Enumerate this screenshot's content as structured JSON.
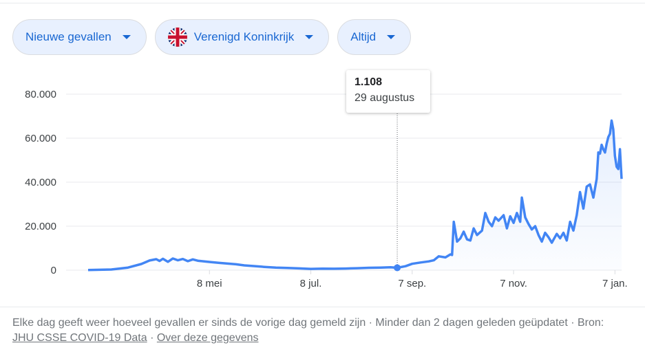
{
  "filters": [
    {
      "label": "Nieuwe gevallen",
      "icon": "chevron-down-icon"
    },
    {
      "label": "Verenigd Koninkrijk",
      "icon": "uk-flag-icon"
    },
    {
      "label": "Altijd",
      "icon": "chevron-down-icon"
    }
  ],
  "tooltip": {
    "value": "1.108",
    "date": "29 augustus"
  },
  "footer": {
    "description": "Elke dag geeft weer hoeveel gevallen er sinds de vorige dag gemeld zijn · Minder dan 2 dagen geleden geüpdatet ·",
    "source_prefix": "Bron:",
    "source_link": "JHU CSSE COVID-19 Data",
    "separator": "·",
    "about_link": "Over deze gegevens"
  },
  "colors": {
    "line": "#4285f4",
    "accent": "#1967d2"
  },
  "chart_data": {
    "type": "area",
    "x_start": "2020-02-25",
    "x_end": "2021-01-11",
    "x_tick_labels": [
      "8 mei",
      "8 jul.",
      "7 sep.",
      "7 nov.",
      "7 jan."
    ],
    "x_tick_dates": [
      "2020-05-08",
      "2020-07-08",
      "2020-09-07",
      "2020-11-07",
      "2021-01-07"
    ],
    "y_tick_labels": [
      "0",
      "20.000",
      "40.000",
      "60.000",
      "80.000"
    ],
    "y_tick_values": [
      0,
      20000,
      40000,
      60000,
      80000
    ],
    "ylim": [
      0,
      80000
    ],
    "grid": true,
    "highlight": {
      "date": "2020-08-29",
      "value": 1108
    },
    "series": [
      {
        "points": [
          [
            "2020-02-25",
            50
          ],
          [
            "2020-03-10",
            300
          ],
          [
            "2020-03-20",
            1200
          ],
          [
            "2020-03-28",
            2800
          ],
          [
            "2020-04-02",
            4400
          ],
          [
            "2020-04-06",
            5000
          ],
          [
            "2020-04-08",
            4200
          ],
          [
            "2020-04-10",
            5200
          ],
          [
            "2020-04-13",
            3800
          ],
          [
            "2020-04-16",
            5300
          ],
          [
            "2020-04-19",
            4500
          ],
          [
            "2020-04-22",
            5100
          ],
          [
            "2020-04-25",
            4100
          ],
          [
            "2020-04-28",
            4900
          ],
          [
            "2020-05-01",
            4300
          ],
          [
            "2020-05-05",
            4000
          ],
          [
            "2020-05-09",
            3700
          ],
          [
            "2020-05-14",
            3300
          ],
          [
            "2020-05-19",
            3000
          ],
          [
            "2020-05-24",
            2700
          ],
          [
            "2020-05-29",
            2200
          ],
          [
            "2020-06-03",
            1900
          ],
          [
            "2020-06-10",
            1500
          ],
          [
            "2020-06-17",
            1200
          ],
          [
            "2020-06-24",
            1000
          ],
          [
            "2020-07-01",
            800
          ],
          [
            "2020-07-08",
            600
          ],
          [
            "2020-07-15",
            700
          ],
          [
            "2020-07-22",
            650
          ],
          [
            "2020-07-29",
            750
          ],
          [
            "2020-08-05",
            900
          ],
          [
            "2020-08-12",
            1100
          ],
          [
            "2020-08-19",
            1200
          ],
          [
            "2020-08-25",
            1300
          ],
          [
            "2020-08-29",
            1108
          ],
          [
            "2020-09-03",
            1800
          ],
          [
            "2020-09-07",
            2900
          ],
          [
            "2020-09-12",
            3500
          ],
          [
            "2020-09-17",
            4000
          ],
          [
            "2020-09-20",
            4500
          ],
          [
            "2020-09-23",
            6300
          ],
          [
            "2020-09-27",
            5800
          ],
          [
            "2020-09-30",
            7200
          ],
          [
            "2020-10-01",
            6900
          ],
          [
            "2020-10-02",
            22000
          ],
          [
            "2020-10-04",
            13000
          ],
          [
            "2020-10-06",
            14500
          ],
          [
            "2020-10-08",
            17500
          ],
          [
            "2020-10-10",
            14000
          ],
          [
            "2020-10-12",
            13500
          ],
          [
            "2020-10-14",
            19000
          ],
          [
            "2020-10-16",
            16000
          ],
          [
            "2020-10-19",
            18000
          ],
          [
            "2020-10-21",
            26000
          ],
          [
            "2020-10-23",
            22000
          ],
          [
            "2020-10-25",
            20000
          ],
          [
            "2020-10-27",
            24000
          ],
          [
            "2020-10-29",
            22500
          ],
          [
            "2020-11-01",
            25000
          ],
          [
            "2020-11-03",
            19000
          ],
          [
            "2020-11-05",
            24500
          ],
          [
            "2020-11-07",
            21500
          ],
          [
            "2020-11-09",
            26000
          ],
          [
            "2020-11-11",
            22000
          ],
          [
            "2020-11-12",
            33000
          ],
          [
            "2020-11-14",
            24000
          ],
          [
            "2020-11-16",
            21000
          ],
          [
            "2020-11-18",
            18500
          ],
          [
            "2020-11-20",
            20000
          ],
          [
            "2020-11-22",
            16000
          ],
          [
            "2020-11-24",
            13000
          ],
          [
            "2020-11-26",
            17000
          ],
          [
            "2020-11-28",
            15000
          ],
          [
            "2020-11-30",
            12500
          ],
          [
            "2020-12-03",
            16500
          ],
          [
            "2020-12-05",
            14500
          ],
          [
            "2020-12-07",
            17000
          ],
          [
            "2020-12-09",
            13500
          ],
          [
            "2020-12-11",
            22000
          ],
          [
            "2020-12-13",
            18000
          ],
          [
            "2020-12-15",
            25000
          ],
          [
            "2020-12-17",
            35500
          ],
          [
            "2020-12-19",
            28000
          ],
          [
            "2020-12-21",
            38000
          ],
          [
            "2020-12-23",
            39000
          ],
          [
            "2020-12-25",
            33000
          ],
          [
            "2020-12-27",
            41500
          ],
          [
            "2020-12-28",
            53500
          ],
          [
            "2020-12-29",
            53000
          ],
          [
            "2020-12-30",
            57000
          ],
          [
            "2020-12-31",
            55000
          ],
          [
            "2021-01-01",
            53500
          ],
          [
            "2021-01-02",
            57500
          ],
          [
            "2021-01-03",
            60500
          ],
          [
            "2021-01-04",
            62000
          ],
          [
            "2021-01-05",
            68000
          ],
          [
            "2021-01-06",
            64000
          ],
          [
            "2021-01-07",
            52000
          ],
          [
            "2021-01-08",
            47000
          ],
          [
            "2021-01-09",
            46000
          ],
          [
            "2021-01-10",
            55000
          ],
          [
            "2021-01-11",
            41500
          ]
        ]
      }
    ]
  }
}
